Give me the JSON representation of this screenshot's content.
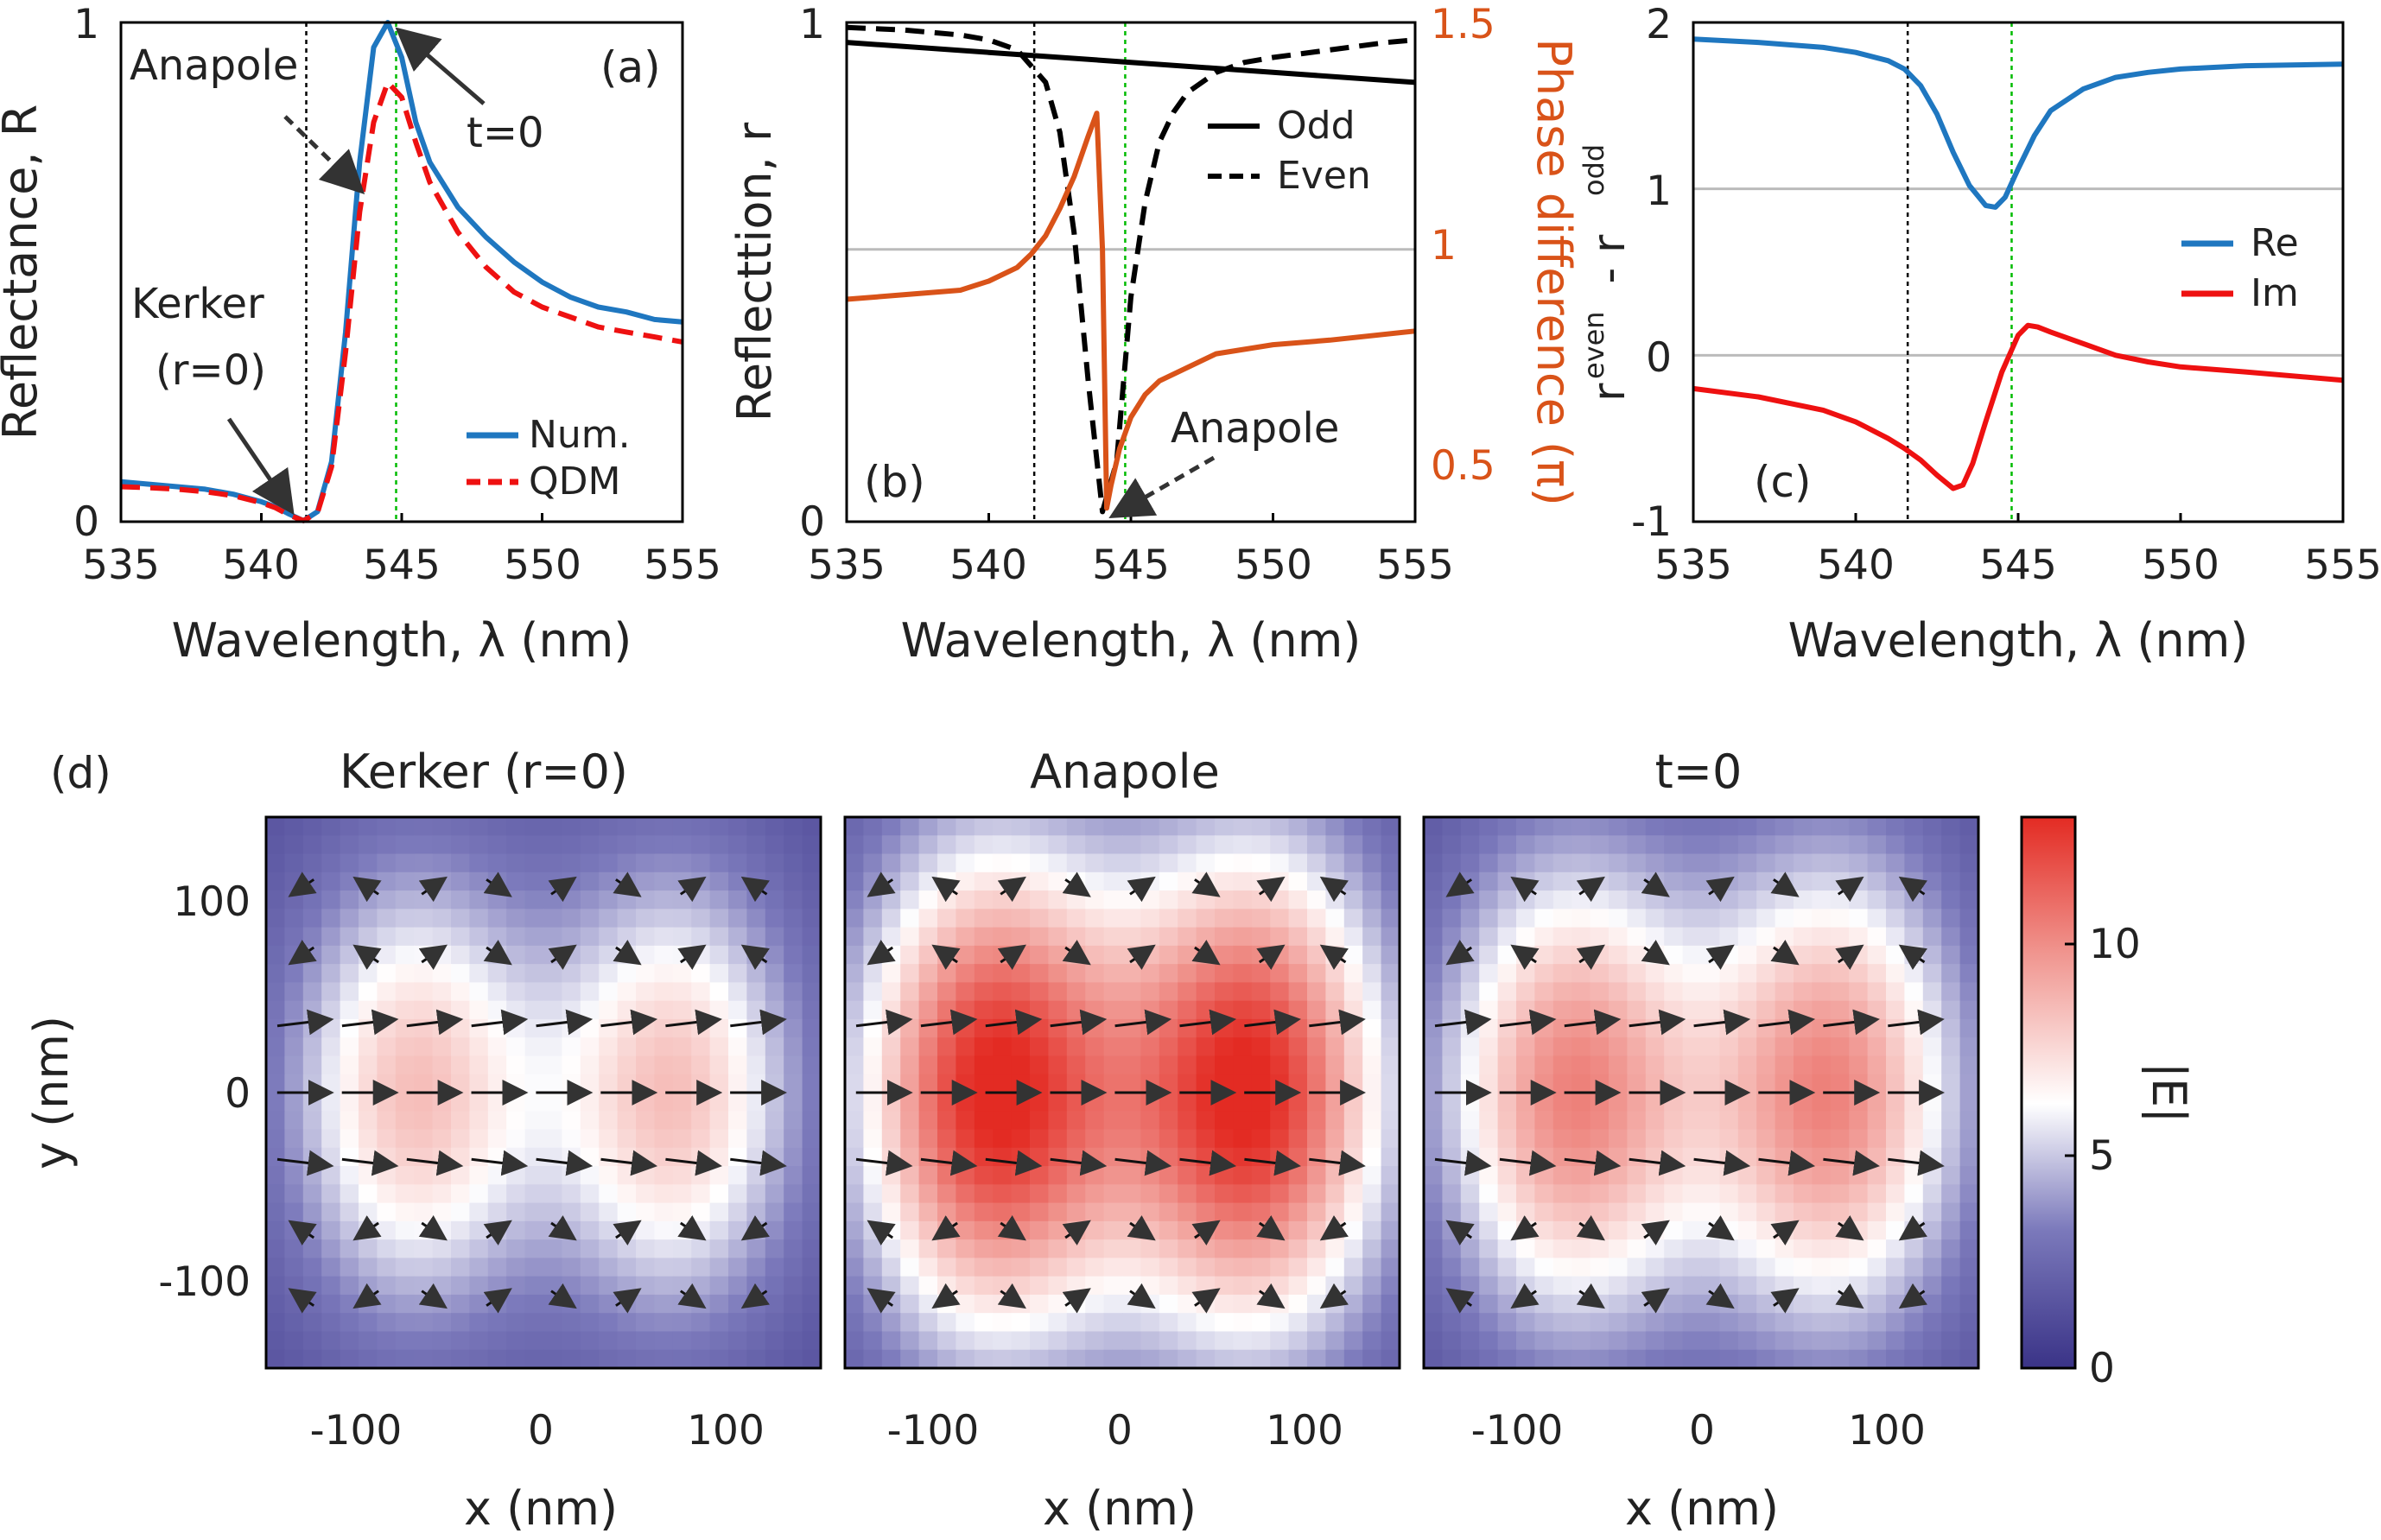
{
  "chart_data": [
    {
      "panel": "(a)",
      "type": "line",
      "xlabel": "Wavelength, λ (nm)",
      "ylabel": "Reflectance, R",
      "xlim": [
        535,
        555
      ],
      "ylim": [
        0,
        1
      ],
      "xticks": [
        "535",
        "540",
        "545",
        "550",
        "555"
      ],
      "yticks": [
        "0",
        "1"
      ],
      "vlines": [
        {
          "x": 541.6,
          "color": "#000000"
        },
        {
          "x": 544.8,
          "color": "#00bb00"
        }
      ],
      "series": [
        {
          "name": "Num.",
          "color": "#1f77c0",
          "style": "solid",
          "x": [
            535,
            536,
            537,
            538,
            539,
            540,
            540.5,
            541,
            541.5,
            542,
            542.5,
            543,
            543.5,
            544,
            544.5,
            545,
            545.5,
            546,
            547,
            548,
            549,
            550,
            551,
            552,
            553,
            554,
            555
          ],
          "y": [
            0.08,
            0.075,
            0.07,
            0.065,
            0.055,
            0.04,
            0.03,
            0.015,
            0.002,
            0.02,
            0.12,
            0.38,
            0.72,
            0.95,
            1.0,
            0.93,
            0.8,
            0.72,
            0.63,
            0.57,
            0.52,
            0.48,
            0.45,
            0.43,
            0.42,
            0.405,
            0.4
          ]
        },
        {
          "name": "QDM",
          "color": "#ee1111",
          "style": "dashed",
          "x": [
            535,
            536,
            537,
            538,
            539,
            540,
            540.5,
            541,
            541.5,
            542,
            542.5,
            543,
            543.5,
            544,
            544.5,
            545,
            545.5,
            546,
            547,
            548,
            549,
            550,
            551,
            552,
            553,
            554,
            555
          ],
          "y": [
            0.07,
            0.068,
            0.065,
            0.06,
            0.052,
            0.038,
            0.028,
            0.013,
            0.002,
            0.018,
            0.11,
            0.34,
            0.62,
            0.8,
            0.88,
            0.85,
            0.76,
            0.68,
            0.58,
            0.51,
            0.46,
            0.43,
            0.41,
            0.39,
            0.38,
            0.37,
            0.36
          ]
        }
      ],
      "annotations": [
        {
          "text": "Anapole",
          "x": 544.1,
          "y": 0.66
        },
        {
          "text": "t=0",
          "x": 545,
          "y": 1.0
        },
        {
          "text": "Kerker",
          "x": 541.5,
          "y": 0.0
        },
        {
          "text": "(r=0)",
          "x": 541.5,
          "y": 0.0
        }
      ]
    },
    {
      "panel": "(b)",
      "type": "line",
      "xlabel": "Wavelength, λ (nm)",
      "ylabel": "Reflecttion, r",
      "ylabel_right": "Phase difference (π)",
      "xlim": [
        535,
        555
      ],
      "ylim": [
        0,
        1
      ],
      "ylim_right": [
        0.4,
        1.5
      ],
      "xticks": [
        "535",
        "540",
        "545",
        "550",
        "555"
      ],
      "yticks": [
        "0",
        "1"
      ],
      "yticks_right": [
        "0.5",
        "1",
        "1.5"
      ],
      "hline_right": 1.0,
      "vlines": [
        {
          "x": 541.6,
          "color": "#000000"
        },
        {
          "x": 544.8,
          "color": "#00bb00"
        }
      ],
      "series": [
        {
          "name": "Odd",
          "color": "#000000",
          "style": "solid",
          "axis": "left",
          "x": [
            535,
            540,
            545,
            550,
            555
          ],
          "y": [
            0.96,
            0.94,
            0.92,
            0.9,
            0.88
          ]
        },
        {
          "name": "Even",
          "color": "#000000",
          "style": "dashed",
          "axis": "left",
          "x": [
            535,
            537,
            539,
            540,
            541,
            542,
            542.5,
            543,
            543.5,
            544,
            544.5,
            545,
            545.5,
            546,
            546.5,
            547,
            548,
            549,
            550,
            552,
            554,
            555
          ],
          "y": [
            0.99,
            0.985,
            0.975,
            0.965,
            0.945,
            0.88,
            0.78,
            0.58,
            0.28,
            0.02,
            0.12,
            0.45,
            0.64,
            0.76,
            0.82,
            0.86,
            0.9,
            0.92,
            0.93,
            0.945,
            0.96,
            0.965
          ]
        },
        {
          "name": "Phase difference",
          "color": "#d95319",
          "style": "solid",
          "axis": "right",
          "x": [
            535,
            537,
            539,
            540,
            541,
            541.5,
            542,
            542.5,
            543,
            543.5,
            543.8,
            544,
            544.15,
            544.3,
            544.6,
            545,
            545.5,
            546,
            547,
            548,
            550,
            552,
            555
          ],
          "y": [
            0.89,
            0.9,
            0.91,
            0.93,
            0.96,
            0.99,
            1.03,
            1.09,
            1.16,
            1.25,
            1.3,
            1.0,
            0.43,
            0.48,
            0.56,
            0.63,
            0.68,
            0.71,
            0.74,
            0.77,
            0.79,
            0.8,
            0.82
          ]
        }
      ],
      "annotations": [
        {
          "text": "Anapole",
          "x": 544.2,
          "y": 0.02
        }
      ]
    },
    {
      "panel": "(c)",
      "type": "line",
      "xlabel": "Wavelength, λ (nm)",
      "ylabel": "r",
      "ylabel_parts": {
        "sup1": "even",
        "dash": " - r",
        "sup2": "odd"
      },
      "xlim": [
        535,
        555
      ],
      "ylim": [
        -1,
        2
      ],
      "xticks": [
        "535",
        "540",
        "545",
        "550",
        "555"
      ],
      "yticks": [
        "-1",
        "0",
        "1",
        "2"
      ],
      "hlines": [
        0,
        1
      ],
      "vlines": [
        {
          "x": 541.6,
          "color": "#000000"
        },
        {
          "x": 544.8,
          "color": "#00bb00"
        }
      ],
      "series": [
        {
          "name": "Re",
          "color": "#1f77c0",
          "style": "solid",
          "x": [
            535,
            537,
            539,
            540,
            541,
            541.5,
            542,
            542.5,
            543,
            543.5,
            544,
            544.3,
            544.6,
            545,
            545.5,
            546,
            547,
            548,
            549,
            550,
            552,
            555
          ],
          "y": [
            1.9,
            1.88,
            1.85,
            1.82,
            1.77,
            1.72,
            1.62,
            1.45,
            1.22,
            1.02,
            0.9,
            0.89,
            0.95,
            1.12,
            1.32,
            1.47,
            1.6,
            1.67,
            1.7,
            1.72,
            1.74,
            1.75
          ]
        },
        {
          "name": "Im",
          "color": "#ee1111",
          "style": "solid",
          "x": [
            535,
            537,
            539,
            540,
            541,
            541.5,
            542,
            542.5,
            543,
            543.3,
            543.6,
            544,
            544.5,
            545,
            545.3,
            545.6,
            546,
            547,
            548,
            549,
            550,
            552,
            555
          ],
          "y": [
            -0.2,
            -0.25,
            -0.33,
            -0.4,
            -0.5,
            -0.56,
            -0.63,
            -0.72,
            -0.8,
            -0.78,
            -0.65,
            -0.4,
            -0.1,
            0.12,
            0.18,
            0.17,
            0.14,
            0.07,
            0.0,
            -0.04,
            -0.07,
            -0.1,
            -0.15
          ]
        }
      ]
    },
    {
      "panel": "(d)",
      "type": "heatmap",
      "xlabel": "x (nm)",
      "ylabel": "y (nm)",
      "xlim": [
        -150,
        150
      ],
      "ylim": [
        -150,
        150
      ],
      "xticks": [
        "-100",
        "0",
        "100"
      ],
      "yticks": [
        "100",
        "0",
        "-100"
      ],
      "colorbar": {
        "label": "|E|",
        "min": 0,
        "max": 13,
        "ticks": [
          "0",
          "5",
          "10"
        ]
      },
      "maps": [
        {
          "title": "Kerker (r=0)",
          "peak": 7.5,
          "sigx": 48,
          "sigy": 85
        },
        {
          "title": "Anapole",
          "peak": 12.5,
          "sigx": 52,
          "sigy": 95
        },
        {
          "title": "t=0",
          "peak": 9.5,
          "sigx": 50,
          "sigy": 90
        }
      ]
    }
  ]
}
